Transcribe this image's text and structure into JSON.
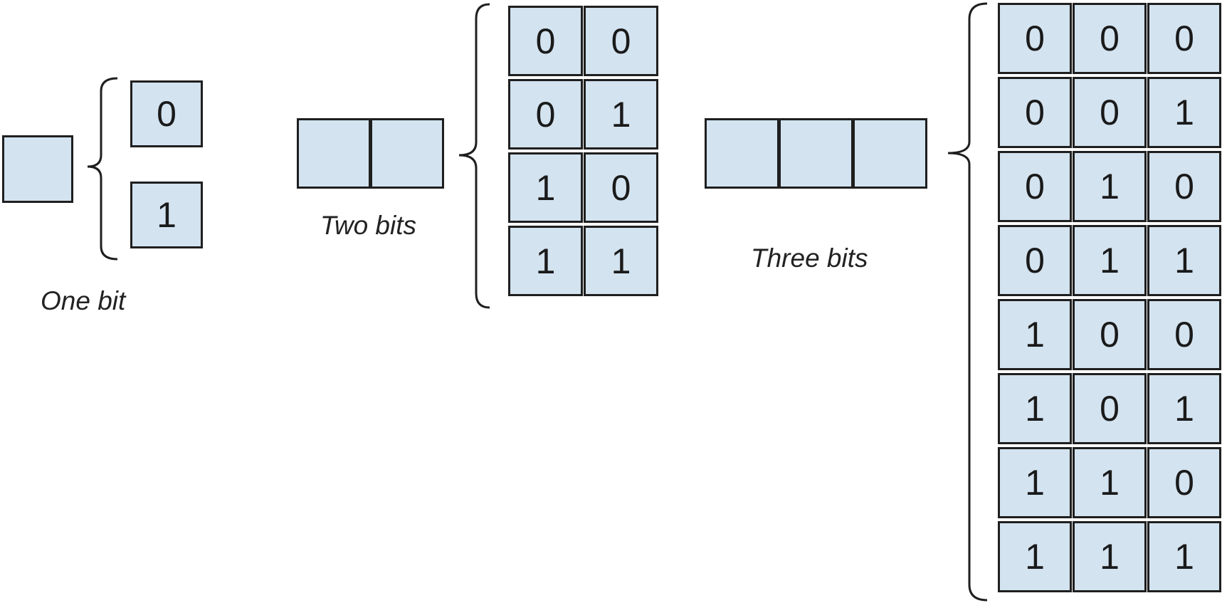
{
  "colors": {
    "cell_fill": "#d3e3f0",
    "cell_border": "#1f1f1f",
    "text": "#1a1a1a"
  },
  "labels": {
    "one_bit": "One bit",
    "two_bits": "Two bits",
    "three_bits": "Three bits"
  },
  "groups": [
    {
      "name": "one-bit",
      "bits": 1,
      "combinations": [
        "0",
        "1"
      ]
    },
    {
      "name": "two-bits",
      "bits": 2,
      "combinations": [
        [
          "0",
          "0"
        ],
        [
          "0",
          "1"
        ],
        [
          "1",
          "0"
        ],
        [
          "1",
          "1"
        ]
      ]
    },
    {
      "name": "three-bits",
      "bits": 3,
      "combinations": [
        [
          "0",
          "0",
          "0"
        ],
        [
          "0",
          "0",
          "1"
        ],
        [
          "0",
          "1",
          "0"
        ],
        [
          "0",
          "1",
          "1"
        ],
        [
          "1",
          "0",
          "0"
        ],
        [
          "1",
          "0",
          "1"
        ],
        [
          "1",
          "1",
          "0"
        ],
        [
          "1",
          "1",
          "1"
        ]
      ]
    }
  ]
}
